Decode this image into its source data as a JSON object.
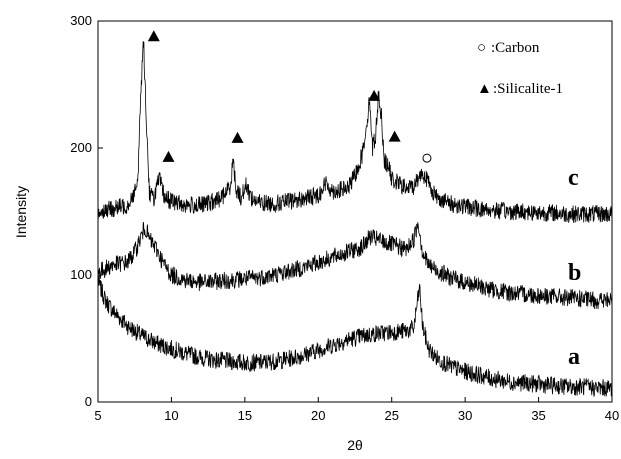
{
  "chart_data": {
    "type": "line",
    "title": "",
    "xlabel": "2θ",
    "ylabel": "Intensity",
    "xlim": [
      5,
      40
    ],
    "ylim": [
      0,
      300
    ],
    "x_ticks": [
      5,
      10,
      15,
      20,
      25,
      30,
      35,
      40
    ],
    "y_ticks": [
      0,
      100,
      200,
      300
    ],
    "grid": false,
    "legend": {
      "placement": "top-right",
      "entries": [
        {
          "marker": "open-circle",
          "symbol": "○",
          "label": ":Carbon"
        },
        {
          "marker": "filled-triangle",
          "symbol": "▲",
          "label": ":Silicalite-1"
        }
      ]
    },
    "series": [
      {
        "name": "a",
        "label_at": {
          "x": 37.0,
          "y": 30
        },
        "x": [
          5.0,
          5.5,
          6.0,
          6.5,
          7.0,
          8.0,
          9.0,
          10.0,
          11.0,
          12.0,
          13.0,
          14.0,
          15.0,
          16.0,
          17.0,
          18.0,
          19.0,
          20.0,
          21.0,
          22.0,
          23.0,
          24.0,
          25.0,
          26.0,
          26.5,
          26.7,
          26.9,
          27.1,
          27.5,
          28.0,
          29.0,
          30.0,
          31.0,
          32.0,
          33.0,
          34.0,
          35.0,
          36.0,
          37.0,
          38.0,
          39.0,
          40.0
        ],
        "y": [
          95,
          80,
          72,
          66,
          60,
          52,
          46,
          42,
          38,
          35,
          33,
          32,
          31,
          31,
          32,
          34,
          37,
          41,
          45,
          49,
          52,
          54,
          55,
          56,
          58,
          75,
          90,
          60,
          42,
          35,
          28,
          24,
          21,
          18,
          16,
          15,
          14,
          13,
          12,
          12,
          11,
          11
        ]
      },
      {
        "name": "b",
        "label_at": {
          "x": 37.0,
          "y": 96
        },
        "x": [
          5.0,
          6.0,
          7.0,
          7.5,
          8.0,
          8.2,
          8.5,
          9.0,
          9.5,
          10.0,
          11.0,
          12.0,
          13.0,
          14.0,
          15.0,
          16.0,
          17.0,
          18.0,
          19.0,
          20.0,
          21.0,
          22.0,
          23.0,
          23.5,
          24.0,
          25.0,
          26.0,
          26.5,
          26.8,
          27.1,
          27.5,
          28.0,
          29.0,
          30.0,
          31.0,
          32.0,
          33.0,
          34.0,
          35.0,
          36.0,
          37.0,
          38.0,
          39.0,
          40.0
        ],
        "y": [
          102,
          108,
          110,
          118,
          132,
          138,
          128,
          120,
          108,
          100,
          96,
          94,
          95,
          96,
          97,
          98,
          100,
          103,
          106,
          110,
          114,
          118,
          122,
          130,
          128,
          124,
          120,
          128,
          142,
          118,
          108,
          104,
          98,
          94,
          91,
          88,
          86,
          85,
          84,
          83,
          82,
          81,
          80,
          80
        ]
      },
      {
        "name": "c",
        "label_at": {
          "x": 37.0,
          "y": 171
        },
        "x": [
          5.0,
          6.0,
          7.0,
          7.7,
          7.9,
          8.1,
          8.3,
          8.5,
          8.8,
          9.0,
          9.2,
          9.5,
          10.0,
          11.0,
          12.0,
          13.0,
          13.5,
          14.0,
          14.2,
          14.4,
          14.8,
          15.0,
          15.5,
          16.0,
          17.0,
          18.0,
          19.0,
          20.0,
          20.5,
          21.0,
          22.0,
          22.5,
          23.0,
          23.3,
          23.5,
          23.7,
          23.9,
          24.1,
          24.3,
          24.5,
          24.8,
          25.0,
          25.5,
          26.0,
          26.5,
          27.0,
          27.3,
          27.6,
          28.0,
          29.0,
          30.0,
          31.0,
          32.0,
          33.0,
          34.0,
          35.0,
          36.0,
          37.0,
          38.0,
          39.0,
          40.0
        ],
        "y": [
          150,
          152,
          155,
          170,
          240,
          285,
          220,
          165,
          160,
          170,
          175,
          162,
          158,
          155,
          155,
          158,
          162,
          170,
          190,
          168,
          160,
          172,
          160,
          157,
          156,
          158,
          160,
          163,
          172,
          166,
          168,
          178,
          195,
          220,
          238,
          200,
          210,
          242,
          225,
          190,
          185,
          175,
          172,
          168,
          170,
          180,
          178,
          170,
          162,
          156,
          154,
          152,
          151,
          150,
          150,
          149,
          149,
          148,
          148,
          148,
          148
        ]
      }
    ],
    "markers": {
      "silicalite_triangles": [
        [
          8.8,
          288
        ],
        [
          9.8,
          193
        ],
        [
          14.5,
          208
        ],
        [
          23.8,
          241
        ],
        [
          25.2,
          209
        ]
      ],
      "carbon_circles": [
        [
          27.4,
          192
        ]
      ]
    }
  }
}
